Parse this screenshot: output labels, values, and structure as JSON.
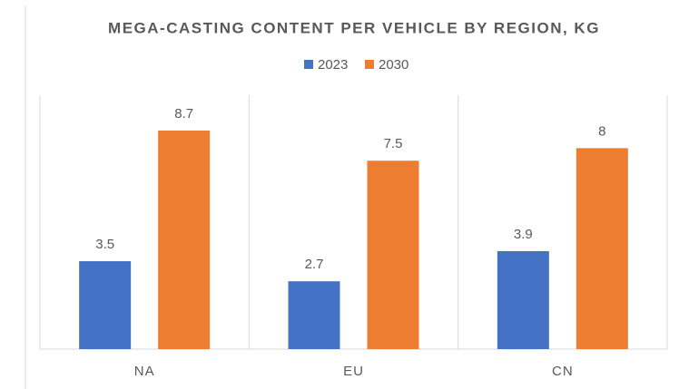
{
  "chart_data": {
    "type": "bar",
    "title": "MEGA-CASTING CONTENT PER VEHICLE BY REGION, KG",
    "categories": [
      "NA",
      "EU",
      "CN"
    ],
    "series": [
      {
        "name": "2023",
        "color": "#4472c4",
        "values": [
          3.5,
          2.7,
          3.9
        ]
      },
      {
        "name": "2030",
        "color": "#ed7d31",
        "values": [
          8.7,
          7.5,
          8
        ]
      }
    ],
    "legend": "top",
    "grid": false
  }
}
